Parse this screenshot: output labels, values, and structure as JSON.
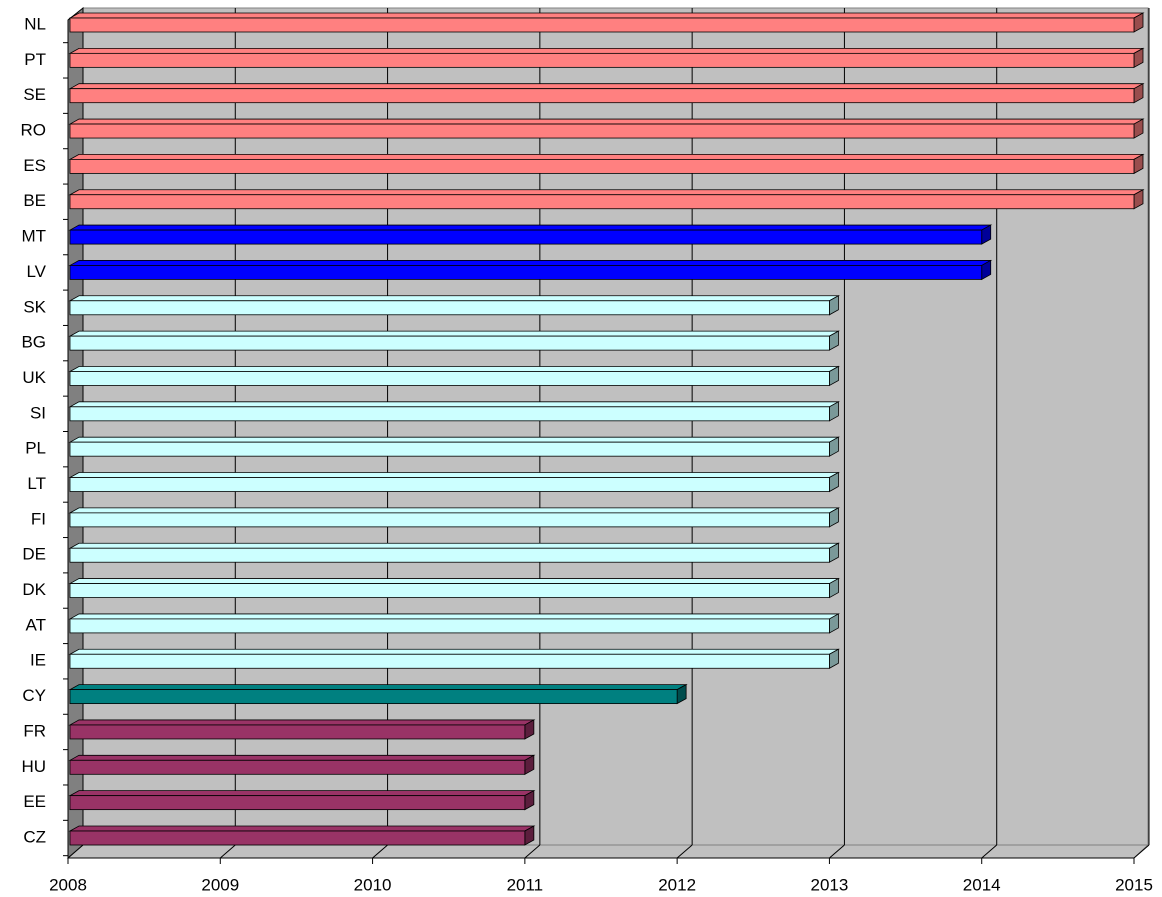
{
  "chart_data": {
    "type": "bar",
    "orientation": "horizontal",
    "categories": [
      "NL",
      "PT",
      "SE",
      "RO",
      "ES",
      "BE",
      "MT",
      "LV",
      "SK",
      "BG",
      "UK",
      "SI",
      "PL",
      "LT",
      "FI",
      "DE",
      "DK",
      "AT",
      "IE",
      "CY",
      "FR",
      "HU",
      "EE",
      "CZ"
    ],
    "values": [
      2015,
      2015,
      2015,
      2015,
      2015,
      2015,
      2014,
      2014,
      2013,
      2013,
      2013,
      2013,
      2013,
      2013,
      2013,
      2013,
      2013,
      2013,
      2013,
      2012,
      2011,
      2011,
      2011,
      2011
    ],
    "colors": [
      "#ff8080",
      "#ff8080",
      "#ff8080",
      "#ff8080",
      "#ff8080",
      "#ff8080",
      "#0000ff",
      "#0000ff",
      "#ccffff",
      "#ccffff",
      "#ccffff",
      "#ccffff",
      "#ccffff",
      "#ccffff",
      "#ccffff",
      "#ccffff",
      "#ccffff",
      "#ccffff",
      "#ccffff",
      "#008080",
      "#993366",
      "#993366",
      "#993366",
      "#993366"
    ],
    "xlim": [
      2008,
      2015
    ],
    "xticks": [
      2008,
      2009,
      2010,
      2011,
      2012,
      2013,
      2014,
      2015
    ],
    "grid": true
  }
}
